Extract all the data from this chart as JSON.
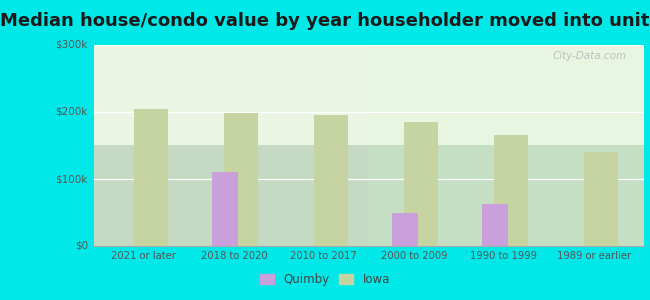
{
  "title": "Median house/condo value by year householder moved into unit",
  "categories": [
    "2021 or later",
    "2018 to 2020",
    "2010 to 2017",
    "2000 to 2009",
    "1990 to 1999",
    "1989 or earlier"
  ],
  "quimby_values": [
    null,
    110000,
    null,
    50000,
    62000,
    null
  ],
  "iowa_values": [
    205000,
    198000,
    196000,
    185000,
    165000,
    140000
  ],
  "quimby_color": "#c9a0dc",
  "iowa_color": "#c5d4a0",
  "background_outer": "#00e8e8",
  "ylim": [
    0,
    300000
  ],
  "yticks": [
    0,
    100000,
    200000,
    300000
  ],
  "ytick_labels": [
    "$0",
    "$100k",
    "$200k",
    "$300k"
  ],
  "title_fontsize": 13,
  "watermark": "City-Data.com",
  "legend_quimby": "Quimby",
  "legend_iowa": "Iowa"
}
